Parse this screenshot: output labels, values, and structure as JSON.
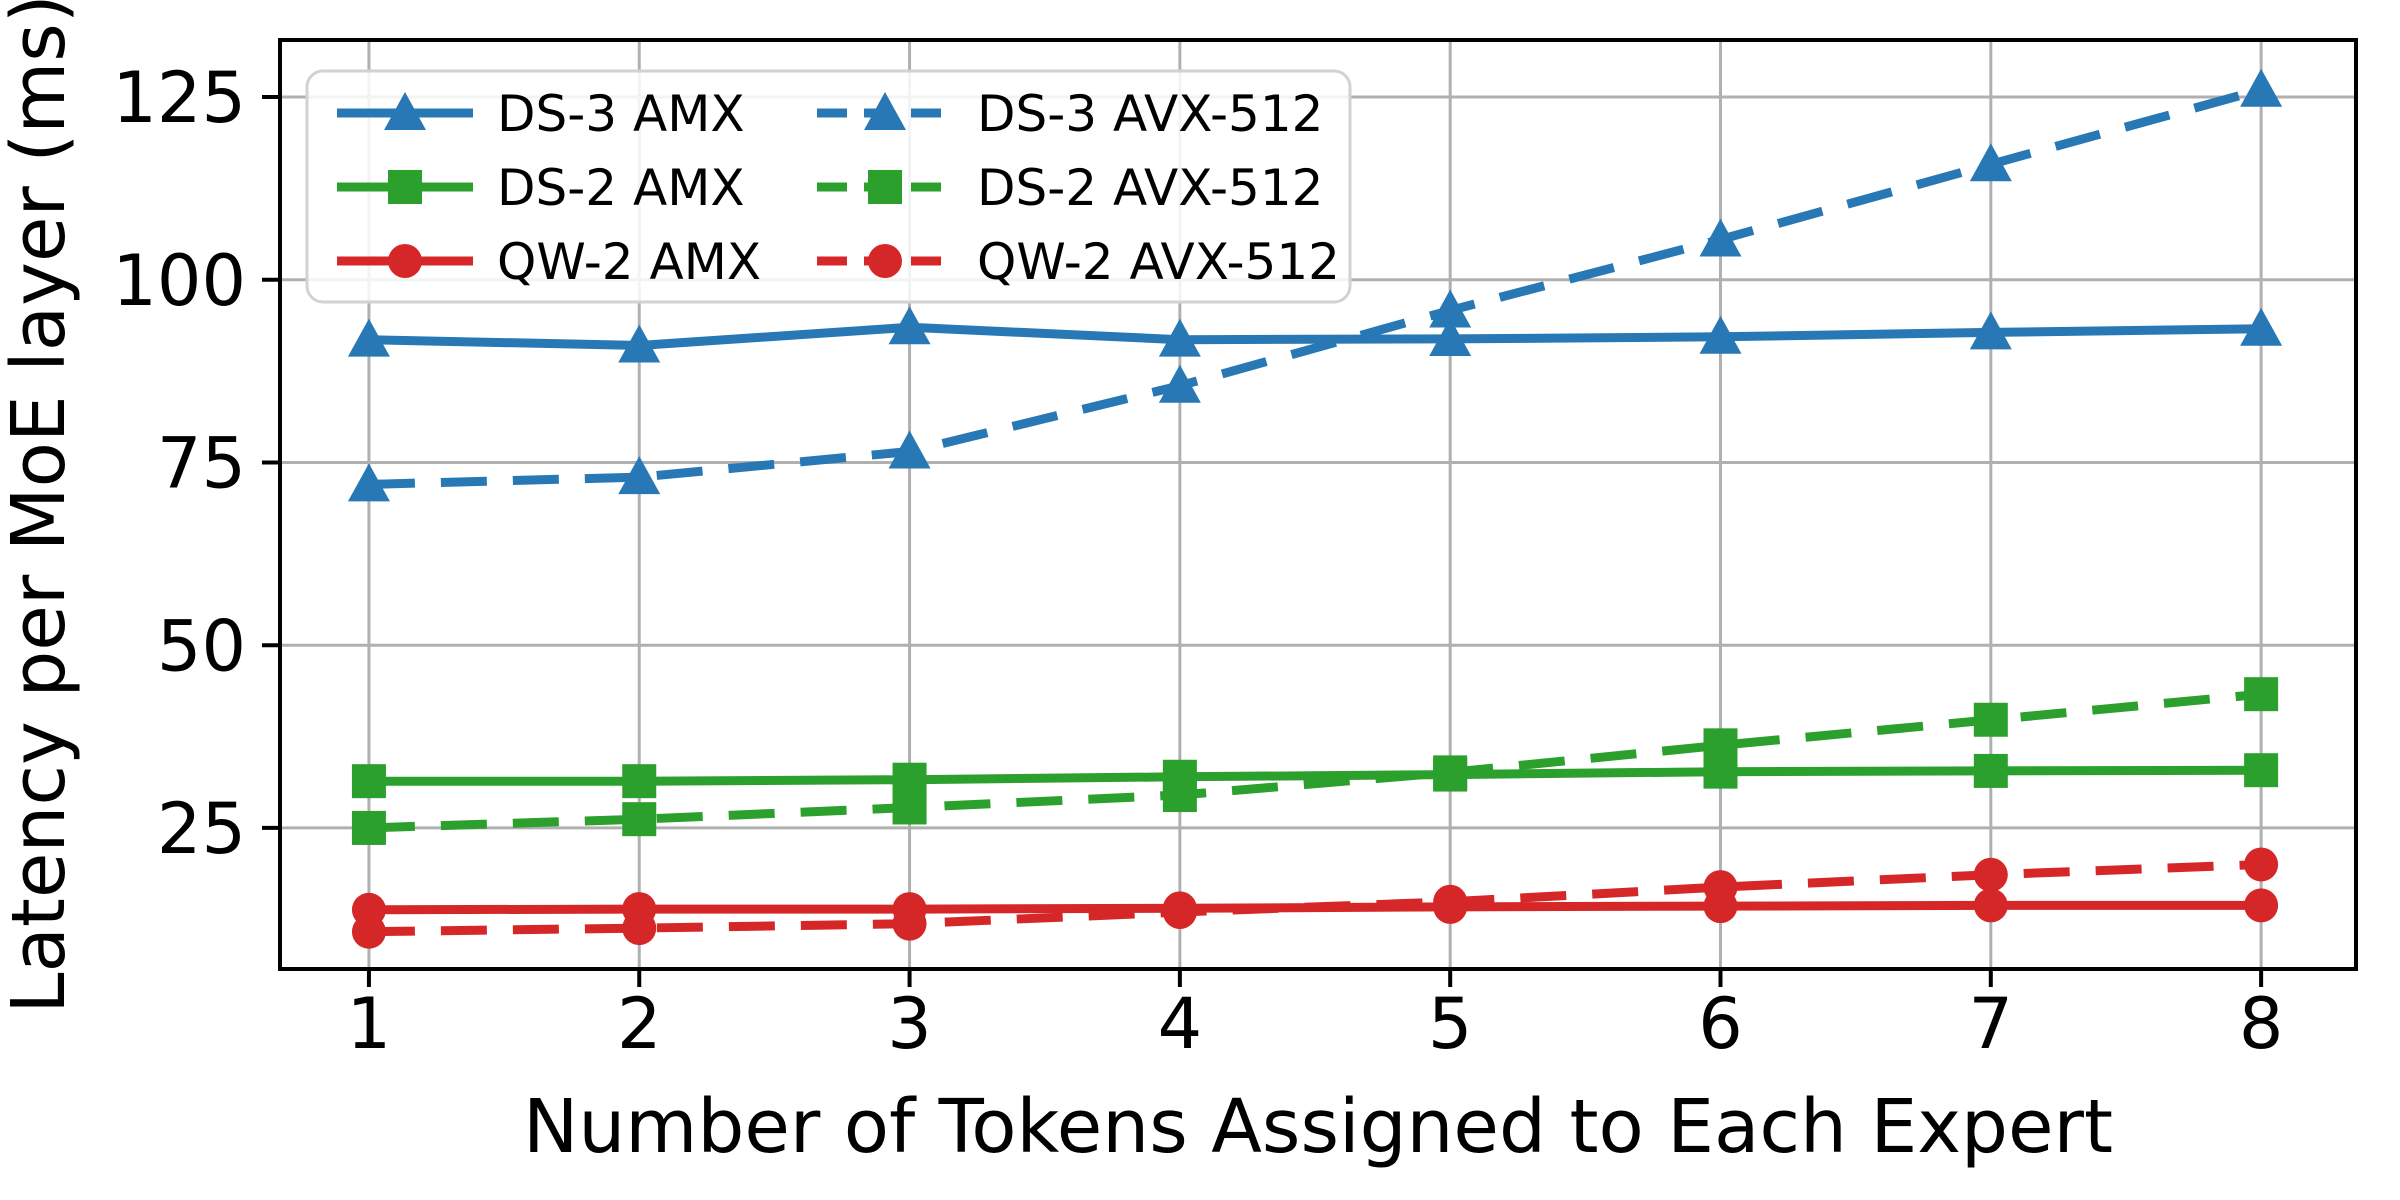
{
  "chart_data": {
    "type": "line",
    "title": "",
    "xlabel": "Number of Tokens Assigned to Each Expert",
    "ylabel": "Latency per MoE layer (ms)",
    "x": [
      1,
      2,
      3,
      4,
      5,
      6,
      7,
      8
    ],
    "xticks": [
      1,
      2,
      3,
      4,
      5,
      6,
      7,
      8
    ],
    "yticks": [
      25,
      50,
      75,
      100,
      125
    ],
    "xlim": [
      0.671,
      8.351
    ],
    "ylim": [
      5.7,
      132.8
    ],
    "grid": true,
    "grid_color": "#b0b0b0",
    "legend_position": "upper left",
    "legend_ncol": 2,
    "series": [
      {
        "name": "DS-3 AMX",
        "color": "#2878b5",
        "style": "solid",
        "marker": "triangle",
        "values": [
          91.8,
          91.0,
          93.5,
          91.8,
          91.9,
          92.2,
          92.8,
          93.3
        ]
      },
      {
        "name": "DS-2 AMX",
        "color": "#2ca02c",
        "style": "solid",
        "marker": "square",
        "values": [
          31.4,
          31.4,
          31.6,
          32.0,
          32.3,
          32.7,
          32.8,
          32.9
        ]
      },
      {
        "name": "QW-2 AMX",
        "color": "#d62728",
        "style": "solid",
        "marker": "circle",
        "values": [
          13.8,
          13.9,
          13.9,
          14.0,
          14.2,
          14.3,
          14.4,
          14.4
        ]
      },
      {
        "name": "DS-3 AVX-512",
        "color": "#2878b5",
        "style": "dashed",
        "marker": "triangle",
        "values": [
          72.0,
          73.0,
          76.5,
          85.5,
          95.8,
          105.5,
          115.8,
          126.0
        ]
      },
      {
        "name": "DS-2 AVX-512",
        "color": "#2ca02c",
        "style": "dashed",
        "marker": "square",
        "values": [
          25.0,
          26.2,
          27.8,
          29.5,
          32.6,
          36.3,
          39.8,
          43.3
        ]
      },
      {
        "name": "QW-2 AVX-512",
        "color": "#d62728",
        "style": "dashed",
        "marker": "circle",
        "values": [
          10.8,
          11.3,
          11.9,
          13.5,
          14.9,
          16.9,
          18.6,
          20.0
        ]
      }
    ]
  }
}
